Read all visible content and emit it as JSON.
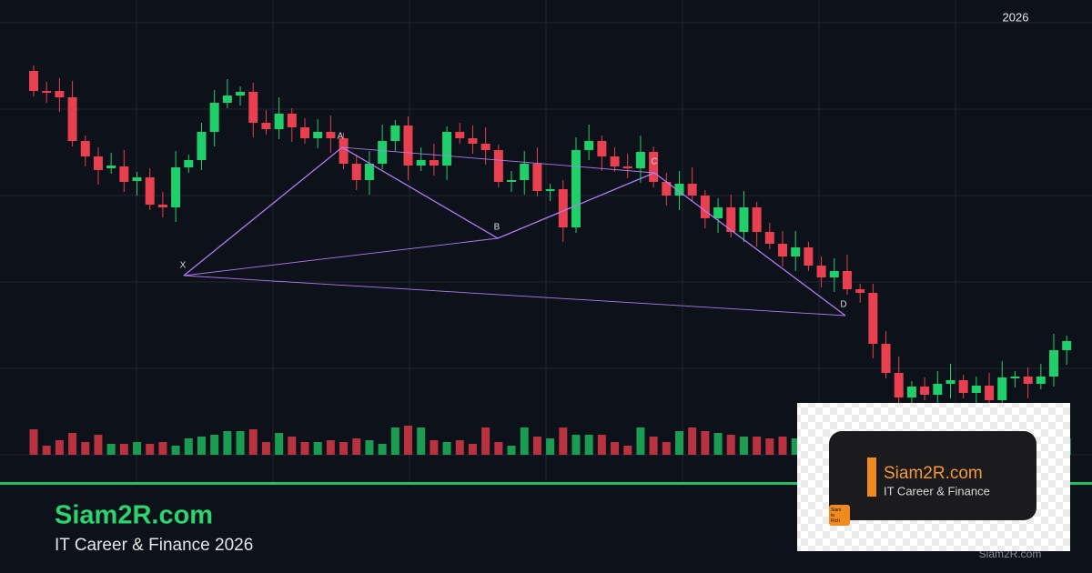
{
  "header": {
    "year": "2026"
  },
  "pattern": {
    "labels": [
      "X",
      "A",
      "B",
      "C",
      "D"
    ]
  },
  "brand": {
    "title": "Siam2R.com",
    "subtitle": "IT Career & Finance 2026"
  },
  "logo": {
    "title": "Siam2R.com",
    "subtitle": "IT Career & Finance",
    "badge": "Siam to Rich"
  },
  "watermark": "Siam2R.com"
}
